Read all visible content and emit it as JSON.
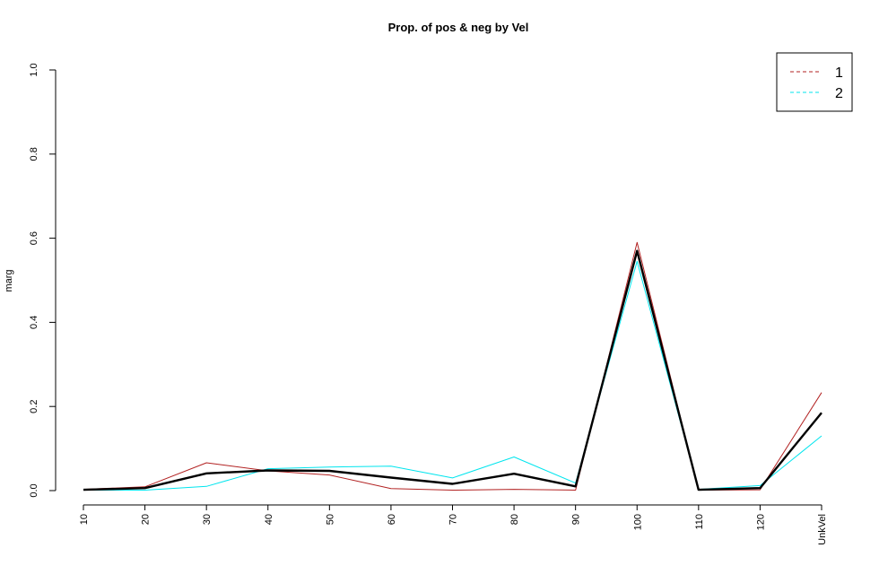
{
  "chart_data": {
    "type": "line",
    "title": "Prop. of pos & neg by Vel",
    "xlabel": "",
    "ylabel": "marg",
    "ylim": [
      0,
      1
    ],
    "y_ticks": [
      "0.0",
      "0.2",
      "0.4",
      "0.6",
      "0.8",
      "1.0"
    ],
    "categories": [
      "10",
      "20",
      "30",
      "40",
      "50",
      "60",
      "70",
      "80",
      "90",
      "100",
      "110",
      "120",
      "UnkVel"
    ],
    "legend_position": "top-right",
    "series": [
      {
        "name": "1",
        "color": "#b22222",
        "legend_dash": "dashed",
        "values": [
          0.003,
          0.009,
          0.066,
          0.047,
          0.037,
          0.005,
          0.001,
          0.003,
          0.001,
          0.59,
          0.001,
          0.002,
          0.233
        ]
      },
      {
        "name": "2",
        "color": "#00e5ee",
        "legend_dash": "dashed",
        "values": [
          0.001,
          0.001,
          0.01,
          0.052,
          0.056,
          0.058,
          0.03,
          0.08,
          0.018,
          0.545,
          0.003,
          0.012,
          0.13
        ]
      },
      {
        "color": "#000000",
        "bold": true,
        "values": [
          0.002,
          0.006,
          0.041,
          0.048,
          0.047,
          0.031,
          0.016,
          0.04,
          0.01,
          0.57,
          0.002,
          0.006,
          0.185
        ]
      }
    ]
  }
}
